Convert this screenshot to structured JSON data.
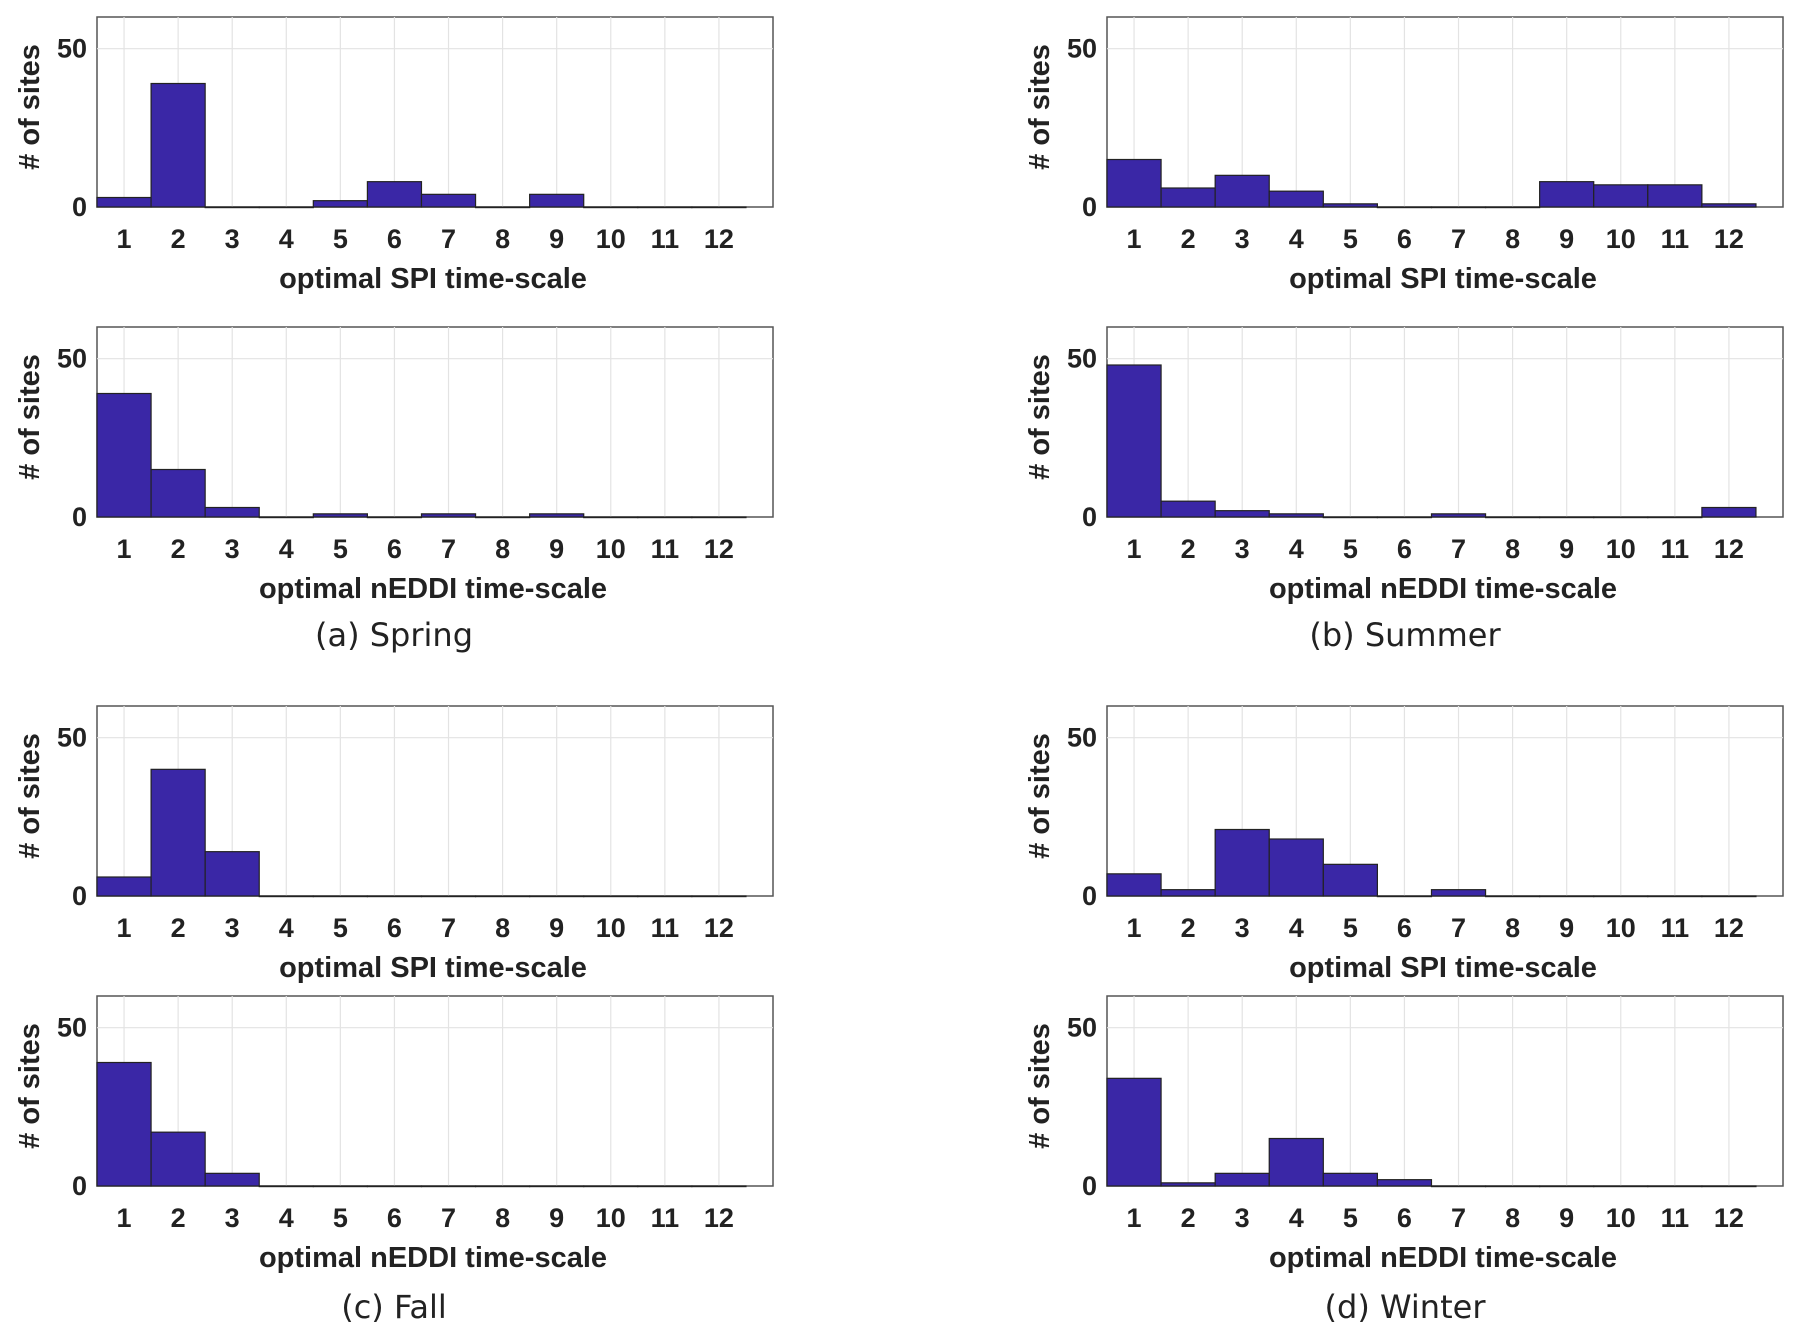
{
  "colors": {
    "bar": "#3a27a6",
    "edge": "#222222",
    "grid": "#e3e3e3",
    "frame": "#555555"
  },
  "captions": [
    "(a) Spring",
    "(b) Summer",
    "(c) Fall",
    "(d) Winter"
  ],
  "chart_data": [
    {
      "type": "bar",
      "panel": "a",
      "position": "top",
      "categories": [
        "1",
        "2",
        "3",
        "4",
        "5",
        "6",
        "7",
        "8",
        "9",
        "10",
        "11",
        "12"
      ],
      "values": [
        3,
        39,
        0,
        0,
        2,
        8,
        4,
        0,
        4,
        0,
        0,
        0
      ],
      "xlabel": "optimal SPI time-scale",
      "ylabel": "# of sites",
      "ylim": [
        0,
        60
      ],
      "yticks": [
        0,
        50
      ],
      "grid": true
    },
    {
      "type": "bar",
      "panel": "a",
      "position": "bottom",
      "categories": [
        "1",
        "2",
        "3",
        "4",
        "5",
        "6",
        "7",
        "8",
        "9",
        "10",
        "11",
        "12"
      ],
      "values": [
        39,
        15,
        3,
        0,
        1,
        0,
        1,
        0,
        1,
        0,
        0,
        0
      ],
      "xlabel": "optimal nEDDI time-scale",
      "ylabel": "# of sites",
      "ylim": [
        0,
        60
      ],
      "yticks": [
        0,
        50
      ],
      "grid": true
    },
    {
      "type": "bar",
      "panel": "b",
      "position": "top",
      "categories": [
        "1",
        "2",
        "3",
        "4",
        "5",
        "6",
        "7",
        "8",
        "9",
        "10",
        "11",
        "12"
      ],
      "values": [
        15,
        6,
        10,
        5,
        1,
        0,
        0,
        0,
        8,
        7,
        7,
        1
      ],
      "xlabel": "optimal SPI time-scale",
      "ylabel": "# of sites",
      "ylim": [
        0,
        60
      ],
      "yticks": [
        0,
        50
      ],
      "grid": true
    },
    {
      "type": "bar",
      "panel": "b",
      "position": "bottom",
      "categories": [
        "1",
        "2",
        "3",
        "4",
        "5",
        "6",
        "7",
        "8",
        "9",
        "10",
        "11",
        "12"
      ],
      "values": [
        48,
        5,
        2,
        1,
        0,
        0,
        1,
        0,
        0,
        0,
        0,
        3
      ],
      "xlabel": "optimal nEDDI time-scale",
      "ylabel": "# of sites",
      "ylim": [
        0,
        60
      ],
      "yticks": [
        0,
        50
      ],
      "grid": true
    },
    {
      "type": "bar",
      "panel": "c",
      "position": "top",
      "categories": [
        "1",
        "2",
        "3",
        "4",
        "5",
        "6",
        "7",
        "8",
        "9",
        "10",
        "11",
        "12"
      ],
      "values": [
        6,
        40,
        14,
        0,
        0,
        0,
        0,
        0,
        0,
        0,
        0,
        0
      ],
      "xlabel": "optimal SPI time-scale",
      "ylabel": "# of sites",
      "ylim": [
        0,
        60
      ],
      "yticks": [
        0,
        50
      ],
      "grid": true
    },
    {
      "type": "bar",
      "panel": "c",
      "position": "bottom",
      "categories": [
        "1",
        "2",
        "3",
        "4",
        "5",
        "6",
        "7",
        "8",
        "9",
        "10",
        "11",
        "12"
      ],
      "values": [
        39,
        17,
        4,
        0,
        0,
        0,
        0,
        0,
        0,
        0,
        0,
        0
      ],
      "xlabel": "optimal nEDDI time-scale",
      "ylabel": "# of sites",
      "ylim": [
        0,
        60
      ],
      "yticks": [
        0,
        50
      ],
      "grid": true
    },
    {
      "type": "bar",
      "panel": "d",
      "position": "top",
      "categories": [
        "1",
        "2",
        "3",
        "4",
        "5",
        "6",
        "7",
        "8",
        "9",
        "10",
        "11",
        "12"
      ],
      "values": [
        7,
        2,
        21,
        18,
        10,
        0,
        2,
        0,
        0,
        0,
        0,
        0
      ],
      "xlabel": "optimal SPI time-scale",
      "ylabel": "# of sites",
      "ylim": [
        0,
        60
      ],
      "yticks": [
        0,
        50
      ],
      "grid": true
    },
    {
      "type": "bar",
      "panel": "d",
      "position": "bottom",
      "categories": [
        "1",
        "2",
        "3",
        "4",
        "5",
        "6",
        "7",
        "8",
        "9",
        "10",
        "11",
        "12"
      ],
      "values": [
        34,
        1,
        4,
        15,
        4,
        2,
        0,
        0,
        0,
        0,
        0,
        0
      ],
      "xlabel": "optimal nEDDI time-scale",
      "ylabel": "# of sites",
      "ylim": [
        0,
        60
      ],
      "yticks": [
        0,
        50
      ],
      "grid": true
    }
  ]
}
